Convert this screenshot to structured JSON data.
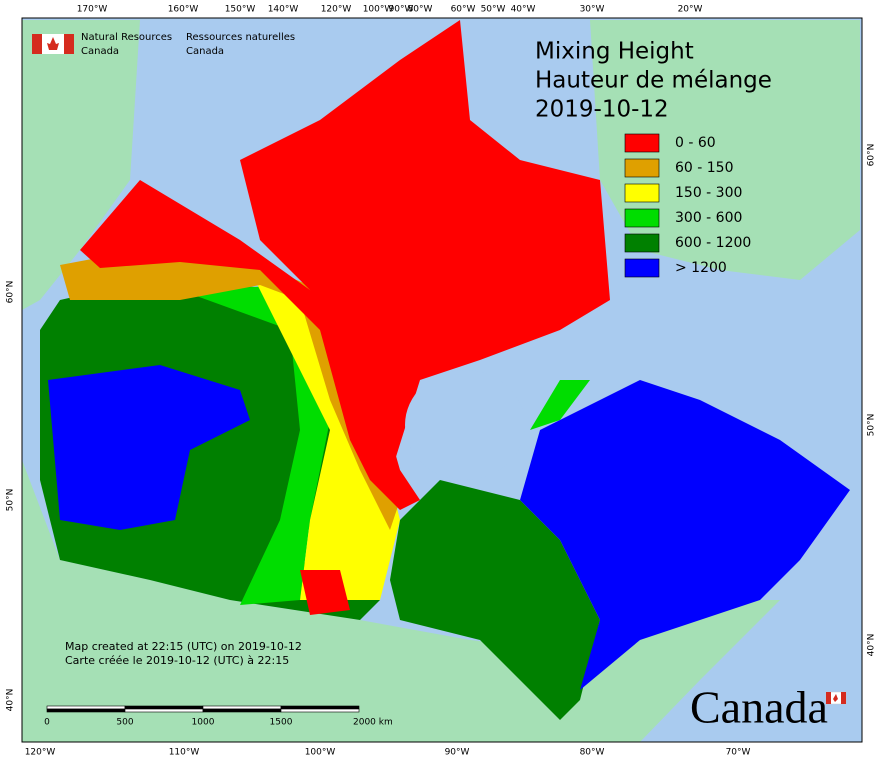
{
  "header": {
    "agency_en": [
      "Natural Resources",
      "Canada"
    ],
    "agency_fr": [
      "Ressources naturelles",
      "Canada"
    ]
  },
  "title": [
    "Mixing Height",
    "Hauteur de mélange",
    "2019-10-12"
  ],
  "legend": [
    {
      "label": "0 - 60",
      "color": "#ff0000"
    },
    {
      "label": "60 - 150",
      "color": "#dfa000"
    },
    {
      "label": "150 - 300",
      "color": "#ffff00"
    },
    {
      "label": "300 - 600",
      "color": "#00dd00"
    },
    {
      "label": "600 - 1200",
      "color": "#008000"
    },
    {
      "label": "> 1200",
      "color": "#0000ff"
    }
  ],
  "graticule": {
    "top": [
      "170°W",
      "160°W",
      "150°W",
      "140°W",
      "120°W",
      "100°W",
      "90°W",
      "80°W",
      "60°W",
      "50°W",
      "40°W",
      "30°W",
      "20°W"
    ],
    "bottom": [
      "120°W",
      "110°W",
      "100°W",
      "90°W",
      "80°W",
      "70°W"
    ],
    "left": [
      "60°N",
      "50°N",
      "40°N"
    ],
    "right": [
      "60°N",
      "50°N",
      "40°N"
    ]
  },
  "notes": [
    "Map created at 22:15 (UTC) on 2019-10-12",
    "Carte créée le 2019-10-12 (UTC) à 22:15"
  ],
  "scale_bar": [
    "0",
    "500",
    "1000",
    "1500",
    "2000  km"
  ],
  "wordmark": "Canada"
}
